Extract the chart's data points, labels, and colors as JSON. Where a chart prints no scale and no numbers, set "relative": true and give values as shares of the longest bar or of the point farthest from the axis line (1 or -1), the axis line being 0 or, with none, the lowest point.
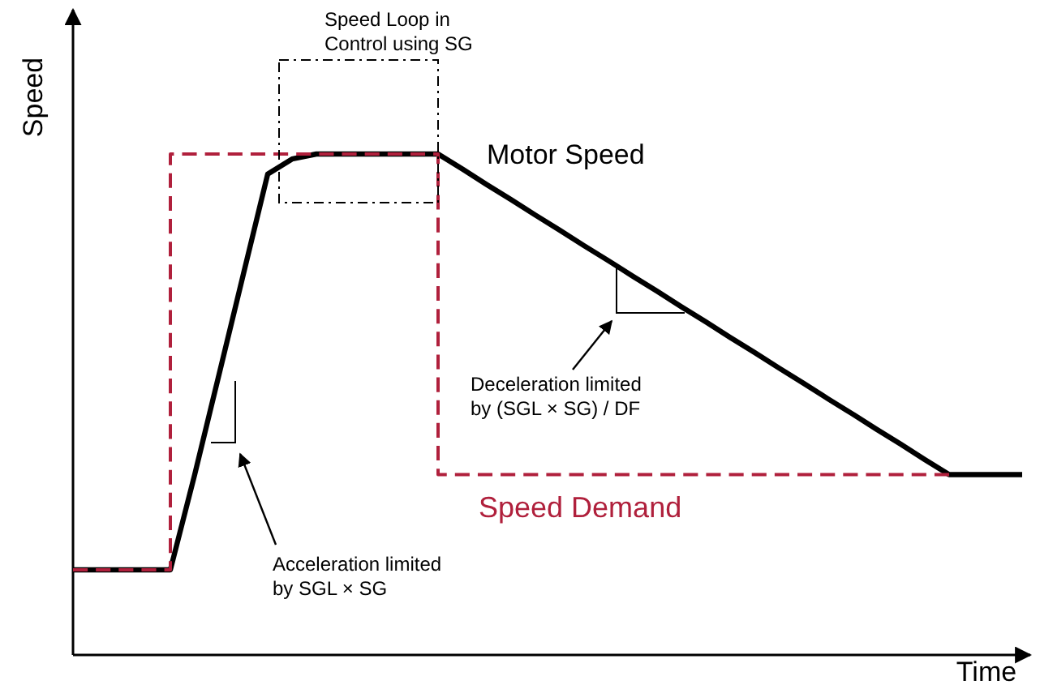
{
  "chart_data": {
    "type": "line",
    "relative": true,
    "xlabel": "Time",
    "ylabel": "Speed",
    "categories": [
      null,
      null,
      null,
      null,
      null,
      null,
      null,
      null,
      null,
      null,
      null,
      null,
      null,
      null,
      null,
      null,
      null,
      null,
      null,
      null,
      null,
      null,
      null,
      null,
      null,
      null,
      null,
      null,
      null,
      null,
      null,
      null,
      null,
      null,
      null,
      null,
      null,
      null,
      null,
      null
    ],
    "series": [
      {
        "name": "Motor Speed",
        "color": "#000000",
        "line_style": "solid",
        "values": [
          0.17,
          0.17,
          0.17,
          0.17,
          0.17,
          0.36,
          0.56,
          0.76,
          0.96,
          0.99,
          1,
          1,
          1,
          1,
          1,
          1,
          0.97,
          0.939,
          0.909,
          0.878,
          0.848,
          0.817,
          0.787,
          0.756,
          0.726,
          0.695,
          0.665,
          0.634,
          0.604,
          0.573,
          0.543,
          0.512,
          0.482,
          0.451,
          0.421,
          0.39,
          0.36,
          0.36,
          0.36,
          0.36
        ]
      },
      {
        "name": "Speed Demand",
        "type": "step",
        "color": "#b0203c",
        "line_style": "dashed",
        "values": [
          0.17,
          0.17,
          0.17,
          0.17,
          1,
          1,
          1,
          1,
          1,
          1,
          1,
          1,
          1,
          1,
          1,
          0.36,
          0.36,
          0.36,
          0.36,
          0.36,
          0.36,
          0.36,
          0.36,
          0.36,
          0.36,
          0.36,
          0.36,
          0.36,
          0.36,
          0.36,
          0.36,
          0.36,
          0.36,
          0.36,
          0.36,
          0.36,
          0.36,
          null,
          null,
          null
        ]
      }
    ],
    "annotations": [
      "Speed Loop in Control using SG",
      "Acceleration limited by SGL × SG",
      "Deceleration limited by (SGL × SG) / DF"
    ]
  }
}
